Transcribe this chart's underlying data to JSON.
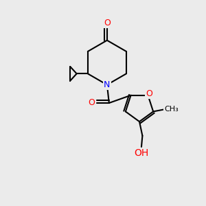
{
  "bg_color": "#ebebeb",
  "bond_color": "#000000",
  "bond_width": 1.5,
  "atom_colors": {
    "O": "#ff0000",
    "N": "#0000ff",
    "C": "#000000"
  },
  "font_size": 9,
  "xlim": [
    0,
    10
  ],
  "ylim": [
    0,
    10
  ]
}
